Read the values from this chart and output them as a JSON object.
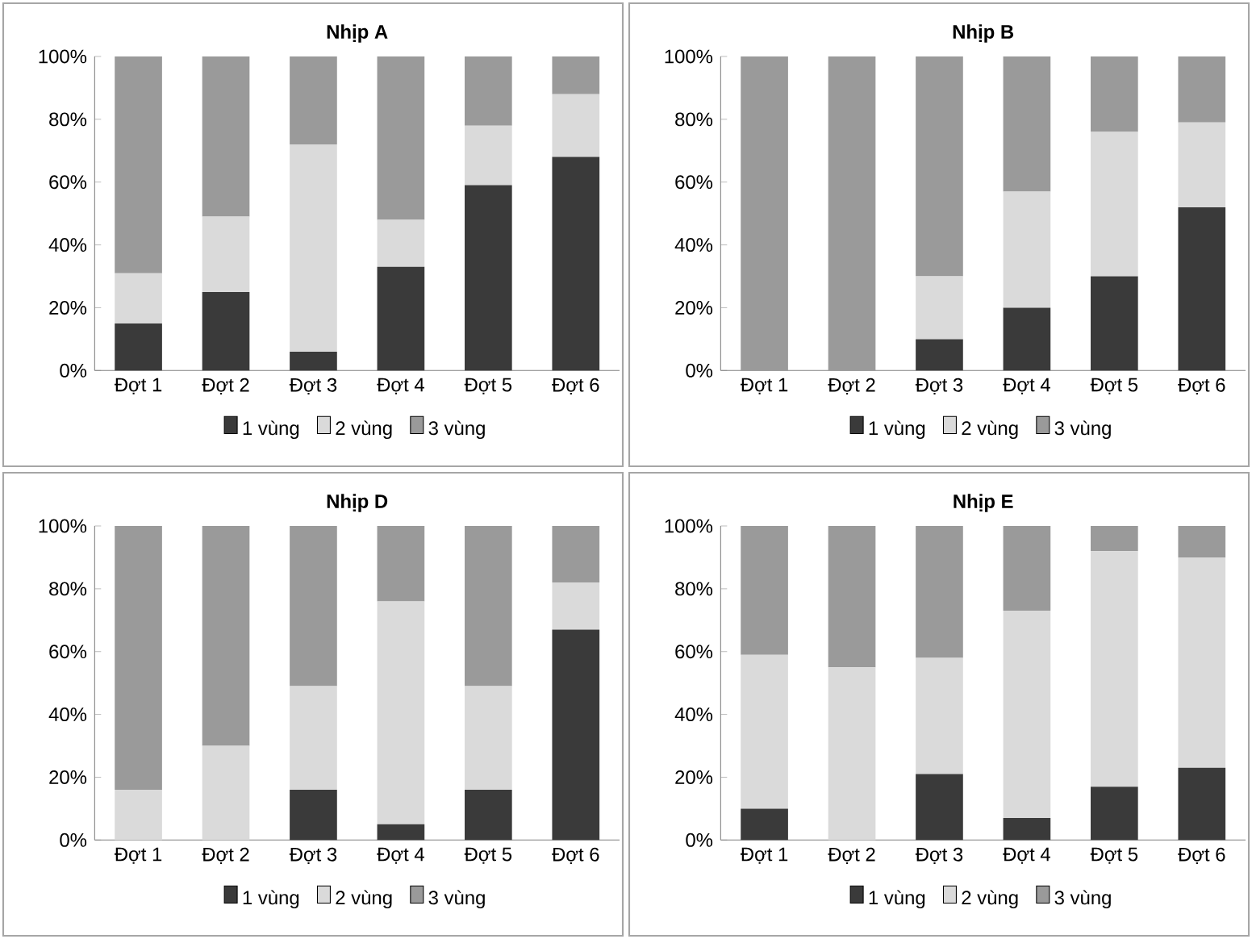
{
  "chart_data": [
    {
      "type": "bar",
      "title": "Nhịp A",
      "stacked": true,
      "legend": "bottom",
      "categories": [
        "Đợt  1",
        "Đợt  2",
        "Đợt  3",
        "Đợt  4",
        "Đợt  5",
        "Đợt  6"
      ],
      "ylim": [
        0,
        100
      ],
      "yticks": [
        {
          "value": 0,
          "label": "0%"
        },
        {
          "value": 20,
          "label": "20%"
        },
        {
          "value": 40,
          "label": "40%"
        },
        {
          "value": 60,
          "label": "60%"
        },
        {
          "value": 80,
          "label": "80%"
        },
        {
          "value": 100,
          "label": "100%"
        }
      ],
      "series": [
        {
          "name": "1 vùng",
          "color": "#3a3a3a",
          "values": [
            15,
            25,
            6,
            33,
            59,
            68
          ]
        },
        {
          "name": "2 vùng",
          "color": "#dadada",
          "values": [
            16,
            24,
            66,
            15,
            19,
            20
          ]
        },
        {
          "name": "3 vùng",
          "color": "#9a9a9a",
          "values": [
            69,
            51,
            28,
            52,
            22,
            12
          ]
        }
      ]
    },
    {
      "type": "bar",
      "title": "Nhịp B",
      "stacked": true,
      "legend": "bottom",
      "categories": [
        "Đợt  1",
        "Đợt  2",
        "Đợt  3",
        "Đợt  4",
        "Đợt  5",
        "Đợt  6"
      ],
      "ylim": [
        0,
        100
      ],
      "yticks": [
        {
          "value": 0,
          "label": "0%"
        },
        {
          "value": 20,
          "label": "20%"
        },
        {
          "value": 40,
          "label": "40%"
        },
        {
          "value": 60,
          "label": "60%"
        },
        {
          "value": 80,
          "label": "80%"
        },
        {
          "value": 100,
          "label": "100%"
        }
      ],
      "series": [
        {
          "name": "1 vùng",
          "color": "#3a3a3a",
          "values": [
            0,
            0,
            10,
            20,
            30,
            52
          ]
        },
        {
          "name": "2 vùng",
          "color": "#dadada",
          "values": [
            0,
            0,
            20,
            37,
            46,
            27
          ]
        },
        {
          "name": "3 vùng",
          "color": "#9a9a9a",
          "values": [
            100,
            100,
            70,
            43,
            24,
            21
          ]
        }
      ]
    },
    {
      "type": "bar",
      "title": "Nhịp D",
      "stacked": true,
      "legend": "bottom",
      "categories": [
        "Đợt  1",
        "Đợt  2",
        "Đợt  3",
        "Đợt  4",
        "Đợt  5",
        "Đợt  6"
      ],
      "ylim": [
        0,
        100
      ],
      "yticks": [
        {
          "value": 0,
          "label": "0%"
        },
        {
          "value": 20,
          "label": "20%"
        },
        {
          "value": 40,
          "label": "40%"
        },
        {
          "value": 60,
          "label": "60%"
        },
        {
          "value": 80,
          "label": "80%"
        },
        {
          "value": 100,
          "label": "100%"
        }
      ],
      "series": [
        {
          "name": "1 vùng",
          "color": "#3a3a3a",
          "values": [
            0,
            0,
            16,
            5,
            16,
            67
          ]
        },
        {
          "name": "2 vùng",
          "color": "#dadada",
          "values": [
            16,
            30,
            33,
            71,
            33,
            15
          ]
        },
        {
          "name": "3 vùng",
          "color": "#9a9a9a",
          "values": [
            84,
            70,
            51,
            24,
            51,
            18
          ]
        }
      ]
    },
    {
      "type": "bar",
      "title": "Nhịp E",
      "stacked": true,
      "legend": "bottom",
      "categories": [
        "Đợt  1",
        "Đợt  2",
        "Đợt  3",
        "Đợt  4",
        "Đợt  5",
        "Đợt  6"
      ],
      "ylim": [
        0,
        100
      ],
      "yticks": [
        {
          "value": 0,
          "label": "0%"
        },
        {
          "value": 20,
          "label": "20%"
        },
        {
          "value": 40,
          "label": "40%"
        },
        {
          "value": 60,
          "label": "60%"
        },
        {
          "value": 80,
          "label": "80%"
        },
        {
          "value": 100,
          "label": "100%"
        }
      ],
      "series": [
        {
          "name": "1 vùng",
          "color": "#3a3a3a",
          "values": [
            10,
            0,
            21,
            7,
            17,
            23
          ]
        },
        {
          "name": "2 vùng",
          "color": "#dadada",
          "values": [
            49,
            55,
            37,
            66,
            75,
            67
          ]
        },
        {
          "name": "3 vùng",
          "color": "#9a9a9a",
          "values": [
            41,
            45,
            42,
            27,
            8,
            10
          ]
        }
      ]
    }
  ]
}
